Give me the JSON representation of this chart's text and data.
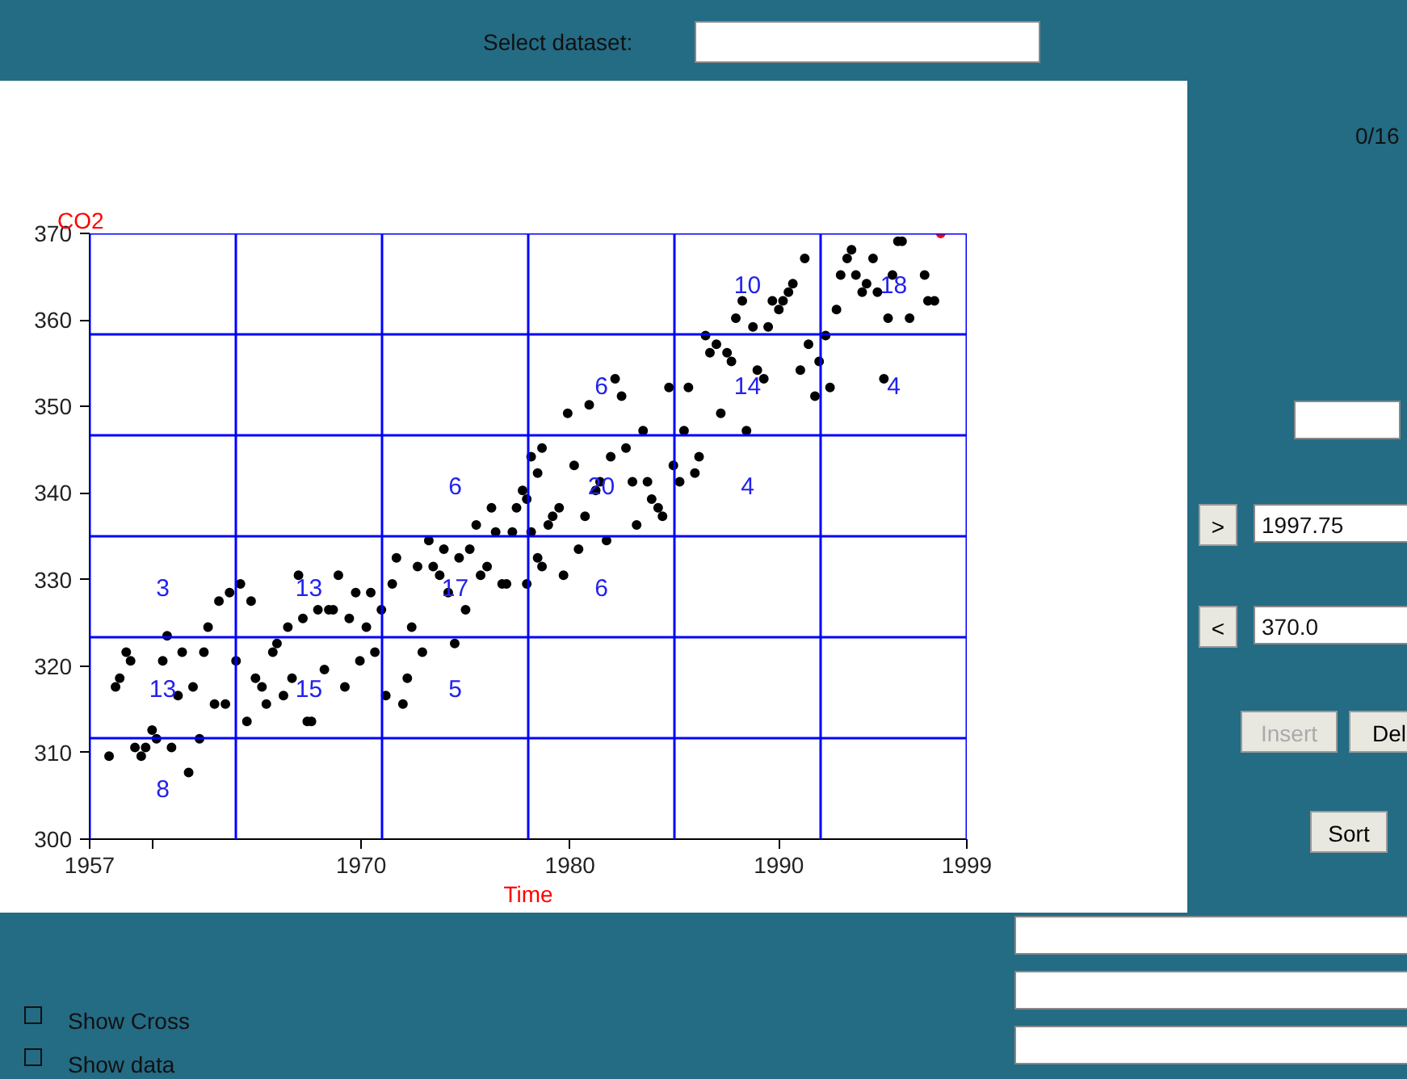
{
  "chart_data": {
    "type": "scatter",
    "xlabel": "Time",
    "ylabel": "CO2",
    "xlim": [
      1957,
      1999
    ],
    "ylim": [
      300,
      370
    ],
    "xticks": [
      1957,
      {
        "value": 1960,
        "label": null
      },
      1970,
      1980,
      1990,
      1999
    ],
    "yticks": [
      300,
      310,
      320,
      330,
      340,
      350,
      360,
      370
    ],
    "grid": false,
    "marker": "circle",
    "ref_lines": [
      {
        "axis": "x",
        "value": 1957,
        "label": null,
        "color": "#0000ff"
      },
      {
        "axis": "x",
        "value": 1964,
        "label": null,
        "color": "#0000ff"
      },
      {
        "axis": "x",
        "value": 1971,
        "label": null,
        "color": "#0000ff"
      },
      {
        "axis": "x",
        "value": 1978,
        "label": null,
        "color": "#0000ff"
      },
      {
        "axis": "x",
        "value": 1985,
        "label": null,
        "color": "#0000ff"
      },
      {
        "axis": "x",
        "value": 1992,
        "label": null,
        "color": "#0000ff"
      },
      {
        "axis": "x",
        "value": 1999,
        "label": null,
        "color": "#0000ff"
      },
      {
        "axis": "y",
        "value": 311.67,
        "label": null,
        "color": "#0000ff"
      },
      {
        "axis": "y",
        "value": 323.33,
        "label": null,
        "color": "#0000ff"
      },
      {
        "axis": "y",
        "value": 335,
        "label": null,
        "color": "#0000ff"
      },
      {
        "axis": "y",
        "value": 346.67,
        "label": null,
        "color": "#0000ff"
      },
      {
        "axis": "y",
        "value": 358.33,
        "label": null,
        "color": "#0000ff"
      },
      {
        "axis": "y",
        "value": 370,
        "label": null,
        "color": "#0000ff"
      }
    ],
    "series": [
      {
        "color": "#000000",
        "x": [
          1957.93,
          1958.24,
          1958.44,
          1958.75,
          1958.96,
          1959.17,
          1959.47,
          1959.68,
          1959.99,
          1960.2,
          1960.5,
          1960.71,
          1960.92,
          1961.23,
          1961.43,
          1961.74,
          1961.95,
          1962.26,
          1962.47,
          1962.67,
          1962.98,
          1963.19,
          1963.5,
          1963.7,
          1964.01,
          1964.22,
          1964.53,
          1964.73,
          1964.94,
          1965.25,
          1965.46,
          1965.77,
          1965.97,
          1966.28,
          1966.49,
          1966.69,
          1967.0,
          1967.21,
          1967.42,
          1967.62,
          1967.93,
          1968.24,
          1968.45,
          1968.66,
          1968.91,
          1969.22,
          1969.43,
          1969.74,
          1969.94,
          1970.25,
          1970.46,
          1970.66,
          1970.97,
          1971.18,
          1971.49,
          1971.69,
          1972.0,
          1972.21,
          1972.42,
          1972.7,
          1972.93,
          1973.24,
          1973.45,
          1973.76,
          1973.96,
          1974.17,
          1974.48,
          1974.69,
          1975.0,
          1975.2,
          1975.51,
          1975.72,
          1976.03,
          1976.24,
          1976.44,
          1976.75,
          1976.96,
          1977.24,
          1977.44,
          1977.73,
          1977.93,
          1978.14,
          1978.45,
          1978.66,
          1977.93,
          1978.14,
          1978.45,
          1978.66,
          1978.96,
          1979.17,
          1979.48,
          1979.69,
          1979.89,
          1980.2,
          1980.41,
          1980.72,
          1980.92,
          1981.23,
          1981.44,
          1981.75,
          1981.95,
          1982.16,
          1982.47,
          1982.68,
          1982.99,
          1983.19,
          1983.5,
          1983.71,
          1983.91,
          1984.22,
          1984.43,
          1984.74,
          1984.95,
          1985.25,
          1985.46,
          1985.67,
          1985.98,
          1986.18,
          1986.49,
          1986.7,
          1987.01,
          1987.22,
          1987.52,
          1987.73,
          1987.94,
          1988.25,
          1988.45,
          1988.76,
          1988.97,
          1989.28,
          1989.49,
          1989.69,
          1990.0,
          1990.2,
          1990.46,
          1990.67,
          1991.03,
          1991.24,
          1991.42,
          1991.73,
          1991.93,
          1992.24,
          1992.45,
          1992.76,
          1992.96,
          1993.27,
          1993.48,
          1993.69,
          1993.99,
          1994.2,
          1994.51,
          1994.72,
          1995.03,
          1995.23,
          1995.44,
          1995.7,
          1995.9,
          1996.26,
          1996.98,
          1997.14,
          1997.45
        ],
        "values": [
          309.6,
          317.6,
          318.6,
          321.6,
          320.6,
          310.6,
          309.6,
          310.6,
          312.6,
          311.6,
          320.6,
          323.5,
          310.6,
          316.6,
          321.6,
          307.7,
          317.6,
          311.6,
          321.6,
          324.5,
          315.6,
          327.5,
          315.6,
          328.5,
          320.6,
          329.5,
          313.6,
          327.5,
          318.6,
          317.6,
          315.6,
          321.6,
          322.6,
          316.6,
          324.5,
          318.6,
          330.5,
          325.5,
          313.6,
          313.6,
          326.5,
          319.6,
          326.5,
          326.5,
          330.5,
          317.6,
          325.5,
          328.5,
          320.6,
          324.5,
          328.5,
          321.6,
          326.5,
          316.6,
          329.5,
          332.5,
          315.6,
          318.6,
          324.5,
          331.5,
          321.6,
          334.5,
          331.5,
          330.5,
          333.5,
          328.5,
          322.6,
          332.5,
          326.5,
          333.5,
          336.3,
          330.5,
          331.5,
          338.3,
          335.5,
          329.5,
          329.5,
          335.5,
          338.3,
          340.3,
          339.3,
          344.2,
          342.3,
          345.2,
          329.5,
          335.5,
          332.5,
          331.5,
          336.3,
          337.3,
          338.3,
          330.5,
          349.2,
          343.2,
          333.5,
          337.3,
          350.2,
          340.3,
          341.3,
          334.5,
          344.2,
          353.2,
          351.2,
          345.2,
          341.3,
          336.3,
          347.2,
          341.3,
          339.3,
          338.3,
          337.3,
          352.2,
          343.2,
          341.3,
          347.2,
          352.2,
          342.3,
          344.2,
          358.2,
          356.2,
          357.2,
          349.2,
          356.2,
          355.2,
          360.2,
          362.2,
          347.2,
          359.2,
          354.2,
          353.2,
          359.2,
          362.2,
          361.2,
          362.2,
          363.2,
          364.2,
          354.2,
          367.1,
          357.2,
          351.2,
          355.2,
          358.2,
          352.2,
          361.2,
          365.2,
          367.1,
          368.1,
          365.2,
          363.2,
          364.2,
          367.1,
          363.2,
          353.2,
          360.2,
          365.2,
          369.1,
          369.1,
          360.2,
          365.2,
          362.2,
          362.2
        ]
      },
      {
        "color": "#ff0000",
        "x": [
          1997.75
        ],
        "values": [
          370.0
        ]
      }
    ],
    "annotations": [
      "3",
      "13",
      "8",
      "13",
      "15",
      "6",
      "17",
      "5",
      "6",
      "20",
      "6",
      "10",
      "14",
      "4",
      "18",
      "4",
      "Select dataset:",
      "0/16",
      ">",
      "1997.75",
      "<",
      "370.0",
      "Insert",
      "Del",
      "Sort",
      "Show Cross",
      "Show data"
    ]
  }
}
